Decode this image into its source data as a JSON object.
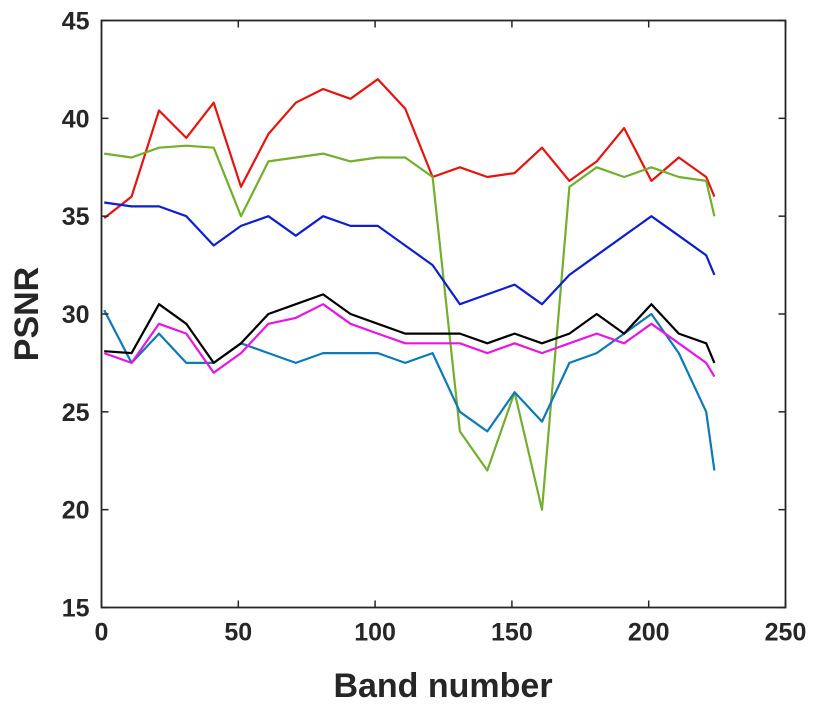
{
  "chart_data": {
    "type": "line",
    "title": "",
    "xlabel": "Band number",
    "ylabel": "PSNR",
    "xlim": [
      0,
      250
    ],
    "ylim": [
      15,
      45
    ],
    "xticks": [
      0,
      50,
      100,
      150,
      200,
      250
    ],
    "yticks": [
      15,
      20,
      25,
      30,
      35,
      40,
      45
    ],
    "grid": false,
    "x": [
      1,
      11,
      21,
      31,
      41,
      51,
      61,
      71,
      81,
      91,
      101,
      111,
      121,
      131,
      141,
      151,
      161,
      171,
      181,
      191,
      201,
      211,
      221,
      224
    ],
    "series": [
      {
        "color": "#e8130c",
        "values": [
          34.9,
          36.0,
          40.4,
          39.0,
          40.8,
          36.5,
          39.2,
          40.8,
          41.5,
          41.0,
          42.0,
          40.5,
          37.0,
          37.5,
          37.0,
          37.2,
          38.5,
          36.8,
          37.8,
          39.5,
          36.8,
          38.0,
          37.0,
          36.0
        ]
      },
      {
        "color": "#72b02c",
        "values": [
          38.2,
          38.0,
          38.5,
          38.6,
          38.5,
          35.0,
          37.8,
          38.0,
          38.2,
          37.8,
          38.0,
          38.0,
          37.0,
          24.0,
          22.0,
          26.0,
          20.0,
          36.5,
          37.5,
          37.0,
          37.5,
          37.0,
          36.8,
          35.0
        ]
      },
      {
        "color": "#0d1fd1",
        "values": [
          35.7,
          35.5,
          35.5,
          35.0,
          33.5,
          34.5,
          35.0,
          34.0,
          35.0,
          34.5,
          34.5,
          33.5,
          32.5,
          30.5,
          31.0,
          31.5,
          30.5,
          32.0,
          33.0,
          34.0,
          35.0,
          34.0,
          33.0,
          32.0
        ]
      },
      {
        "color": "#0b7ab8",
        "values": [
          30.2,
          27.5,
          29.0,
          27.5,
          27.5,
          28.5,
          28.0,
          27.5,
          28.0,
          28.0,
          28.0,
          27.5,
          28.0,
          25.0,
          24.0,
          26.0,
          24.5,
          27.5,
          28.0,
          29.0,
          30.0,
          28.0,
          25.0,
          22.0
        ]
      },
      {
        "color": "#000000",
        "values": [
          28.1,
          28.0,
          30.5,
          29.5,
          27.5,
          28.5,
          30.0,
          30.5,
          31.0,
          30.0,
          29.5,
          29.0,
          29.0,
          29.0,
          28.5,
          29.0,
          28.5,
          29.0,
          30.0,
          29.0,
          30.5,
          29.0,
          28.5,
          27.5
        ]
      },
      {
        "color": "#e815e8",
        "values": [
          28.0,
          27.5,
          29.5,
          29.0,
          27.0,
          28.0,
          29.5,
          29.8,
          30.5,
          29.5,
          29.0,
          28.5,
          28.5,
          28.5,
          28.0,
          28.5,
          28.0,
          28.5,
          29.0,
          28.5,
          29.5,
          28.5,
          27.5,
          26.8
        ]
      }
    ]
  }
}
